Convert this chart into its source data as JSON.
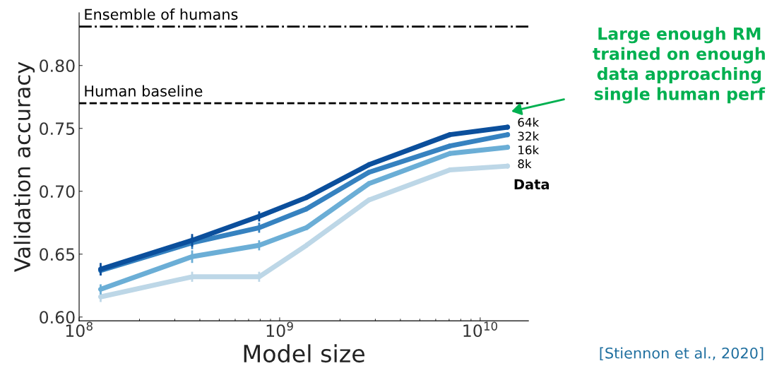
{
  "chart_data": {
    "type": "line",
    "xlabel": "Model size",
    "ylabel": "Validation accuracy",
    "legend_title": "Data",
    "x": [
      128000000.0,
      366000000.0,
      790000000.0,
      1360000000.0,
      2780000000.0,
      7060000000.0,
      13700000000.0
    ],
    "series": [
      {
        "name": "64k",
        "color": "#0b4f9c",
        "values": [
          0.638,
          0.661,
          0.68,
          0.695,
          0.721,
          0.745,
          0.751
        ],
        "errors": [
          0.005,
          0.005,
          0.004,
          0.002,
          0.002,
          0.002,
          0.002
        ]
      },
      {
        "name": "32k",
        "color": "#3682c0",
        "values": [
          0.637,
          0.659,
          0.671,
          0.686,
          0.715,
          0.736,
          0.745
        ],
        "errors": [
          0.004,
          0.005,
          0.004,
          0.002,
          0.002,
          0.002,
          0.002
        ]
      },
      {
        "name": "16k",
        "color": "#6baed6",
        "values": [
          0.622,
          0.648,
          0.657,
          0.671,
          0.706,
          0.73,
          0.735
        ],
        "errors": [
          0.004,
          0.005,
          0.004,
          0.002,
          0.002,
          0.002,
          0.002
        ]
      },
      {
        "name": "8k",
        "color": "#bdd7e7",
        "values": [
          0.616,
          0.632,
          0.632,
          0.657,
          0.693,
          0.717,
          0.72
        ],
        "errors": [
          0.004,
          0.004,
          0.004,
          0.002,
          0.002,
          0.002,
          0.002
        ]
      }
    ],
    "log": "x",
    "xlim": [
      100000000.0,
      17400000000.0
    ],
    "ylim": [
      0.597,
      0.842
    ],
    "xticks": [
      {
        "value": 100000000.0,
        "label": "10$^{8}$"
      },
      {
        "value": 1000000000.0,
        "label": "10$^{9}$"
      },
      {
        "value": 10000000000.0,
        "label": "10$^{10}$"
      }
    ],
    "yticks": [
      {
        "value": 0.6,
        "label": "0.60"
      },
      {
        "value": 0.65,
        "label": "0.65"
      },
      {
        "value": 0.7,
        "label": "0.70"
      },
      {
        "value": 0.75,
        "label": "0.75"
      },
      {
        "value": 0.8,
        "label": "0.80"
      }
    ],
    "ref_lines": [
      {
        "axis": "y",
        "value": 0.831,
        "label": "Ensemble of humans",
        "color": "#000000",
        "line_style": "dashdot"
      },
      {
        "axis": "y",
        "value": 0.77,
        "label": "Human baseline",
        "color": "#000000",
        "line_style": "dashed"
      }
    ],
    "grid": false,
    "legend": "right",
    "marker": "none",
    "line_style": "solid",
    "annotations": [
      "Large enough RM\ntrained on enough\ndata approaching\nsingle human perf",
      "[Stiennon et al., 2020]"
    ]
  }
}
